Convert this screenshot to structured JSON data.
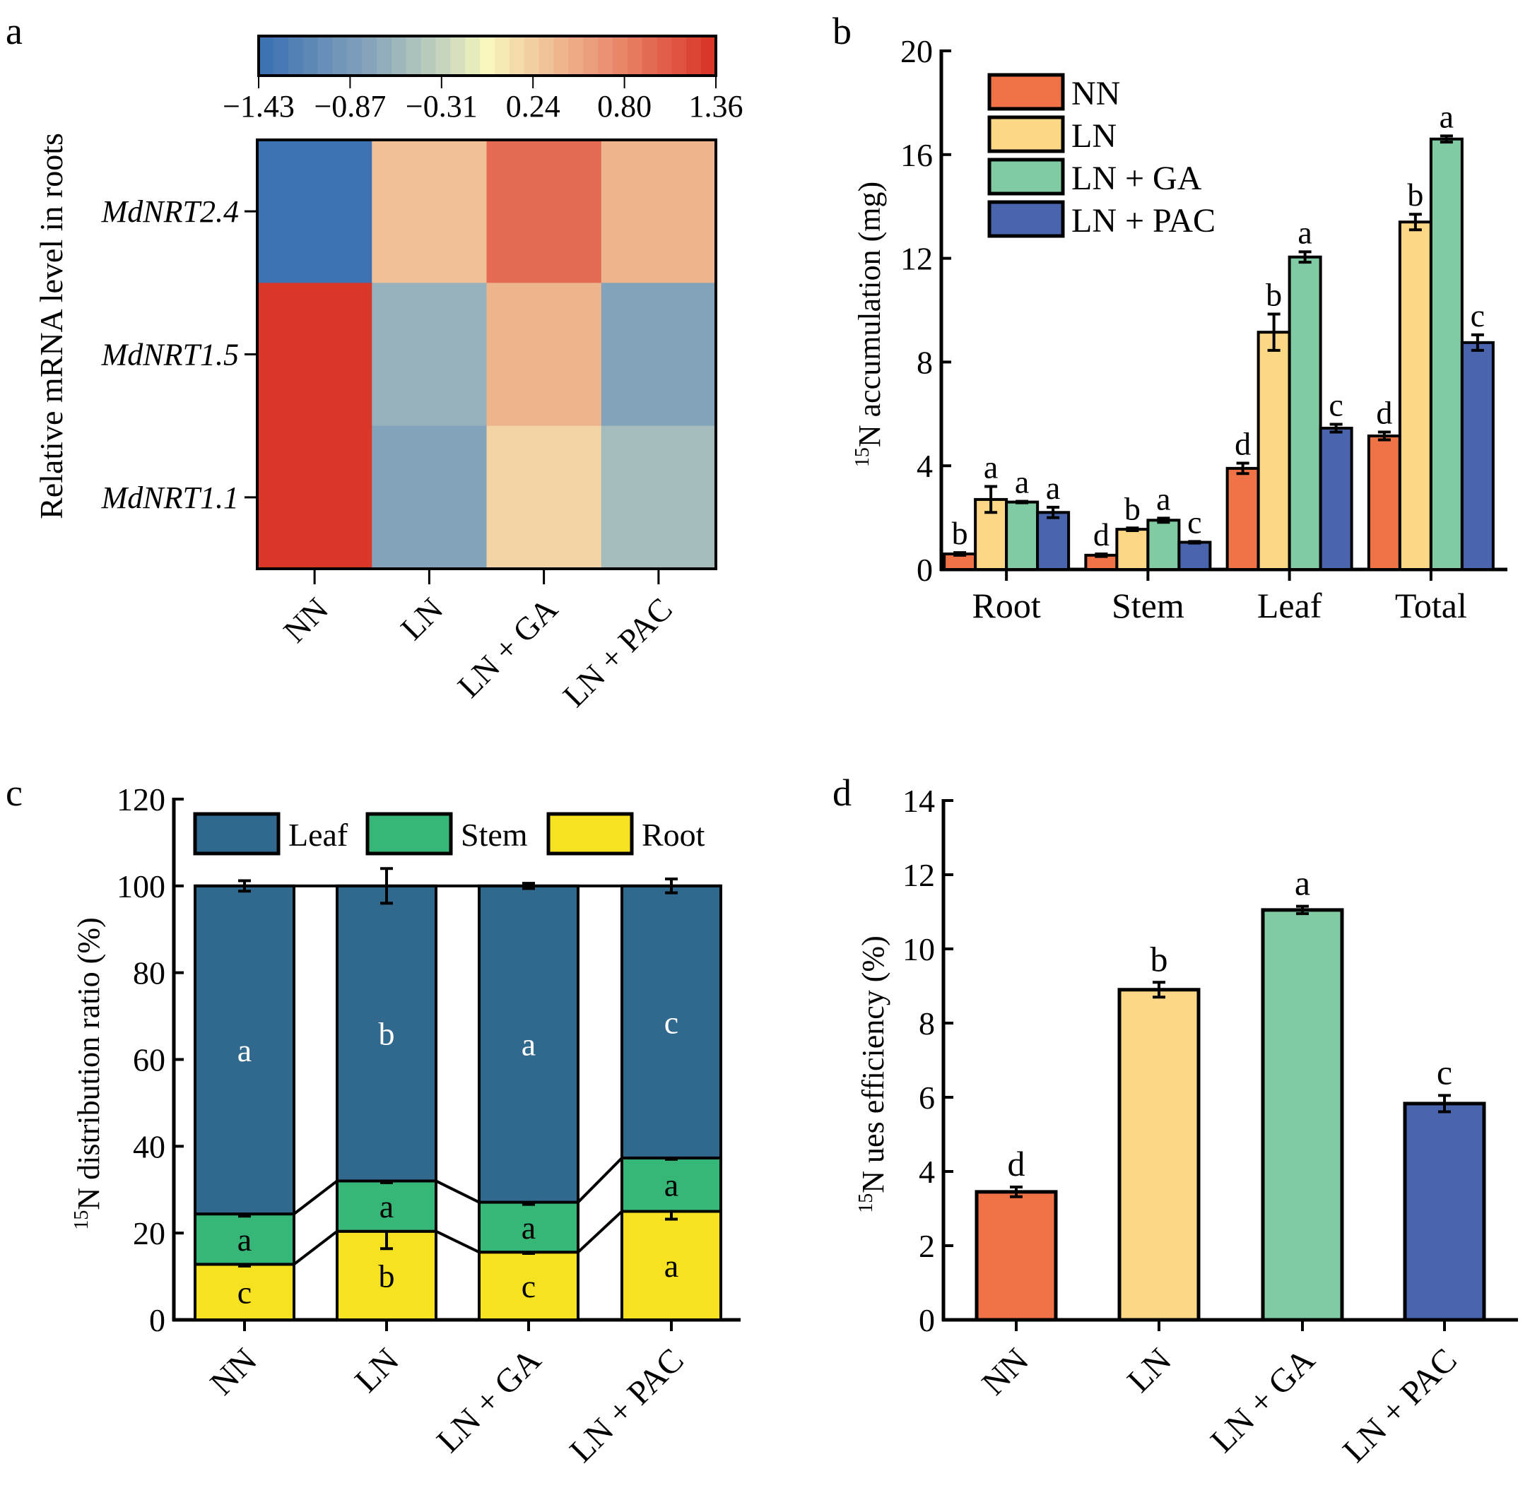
{
  "panels": {
    "a": {
      "letter": "a"
    },
    "b": {
      "letter": "b"
    },
    "c": {
      "letter": "c"
    },
    "d": {
      "letter": "d"
    }
  },
  "chart_data": [
    {
      "id": "a",
      "type": "heatmap",
      "title": "",
      "ylabel": "Relative mRNA level in roots",
      "xlabel": "",
      "x_categories": [
        "NN",
        "LN",
        "LN + GA",
        "LN + PAC"
      ],
      "y_categories": [
        "MdNRT2.4",
        "MdNRT1.5",
        "MdNRT1.1"
      ],
      "values": [
        [
          -1.43,
          0.35,
          1.0,
          0.45
        ],
        [
          1.36,
          -0.65,
          0.45,
          -0.8
        ],
        [
          1.36,
          -0.8,
          0.2,
          -0.55
        ]
      ],
      "colorbar": {
        "min": -1.43,
        "max": 1.36,
        "ticks": [
          "-1.43",
          "-0.87",
          "-0.31",
          "0.24",
          "0.80",
          "1.36"
        ],
        "tick_display": [
          "−1.43",
          "−0.87",
          "−0.31",
          "0.24",
          "0.80",
          "1.36"
        ],
        "low_color": "#3f72b3",
        "mid_color": "#f8f7bd",
        "high_color": "#d93829",
        "steps": 31,
        "placement": "top"
      }
    },
    {
      "id": "b",
      "type": "bar",
      "title": "",
      "xlabel": "",
      "ylabel_sup": "15",
      "ylabel": "N accumulation (mg)",
      "ylim": [
        0,
        20
      ],
      "yticks": [
        0,
        4,
        8,
        12,
        16,
        20
      ],
      "categories": [
        "Root",
        "Stem",
        "Leaf",
        "Total"
      ],
      "legend_placement": "top-left",
      "series": [
        {
          "name": "NN",
          "color": "#f07247",
          "values": [
            0.6,
            0.55,
            3.9,
            5.15
          ],
          "errors": [
            0.05,
            0.05,
            0.2,
            0.15
          ],
          "letters": [
            "b",
            "d",
            "d",
            "d"
          ]
        },
        {
          "name": "LN",
          "color": "#fcd886",
          "values": [
            2.7,
            1.55,
            9.15,
            13.4
          ],
          "errors": [
            0.5,
            0.05,
            0.7,
            0.3
          ],
          "letters": [
            "a",
            "b",
            "b",
            "b"
          ]
        },
        {
          "name": "LN + GA",
          "color": "#80cba4",
          "values": [
            2.6,
            1.9,
            12.05,
            16.6
          ],
          "errors": [
            0.03,
            0.08,
            0.2,
            0.12
          ],
          "letters": [
            "a",
            "a",
            "a",
            "a"
          ]
        },
        {
          "name": "LN + PAC",
          "color": "#4a64ad",
          "values": [
            2.2,
            1.05,
            5.45,
            8.75
          ],
          "errors": [
            0.2,
            0.03,
            0.15,
            0.3
          ],
          "letters": [
            "a",
            "c",
            "c",
            "c"
          ]
        }
      ]
    },
    {
      "id": "c",
      "type": "bar",
      "stacked": true,
      "title": "",
      "xlabel": "",
      "ylabel_sup": "15",
      "ylabel": "N distribution ratio (%)",
      "ylim": [
        0,
        120
      ],
      "yticks": [
        0,
        20,
        40,
        60,
        80,
        100,
        120
      ],
      "categories": [
        "NN",
        "LN",
        "LN + GA",
        "LN + PAC"
      ],
      "legend_placement": "top",
      "series": [
        {
          "name": "Root",
          "color": "#f6e220",
          "values": [
            12.8,
            20.4,
            15.6,
            25.0
          ],
          "errors": [
            0.4,
            4.0,
            0.3,
            1.8
          ],
          "letters": [
            "c",
            "b",
            "c",
            "a"
          ],
          "letter_color": "#000000"
        },
        {
          "name": "Stem",
          "color": "#37b777",
          "values": [
            11.6,
            11.6,
            11.5,
            12.3
          ],
          "errors": [
            0.5,
            0.4,
            0.5,
            0.3
          ],
          "letters": [
            "a",
            "a",
            "a",
            "a"
          ],
          "letter_color": "#000000"
        },
        {
          "name": "Leaf",
          "color": "#31688e",
          "values": [
            75.6,
            68.0,
            72.9,
            62.7
          ],
          "errors": [
            1.2,
            4.0,
            0.6,
            1.6
          ],
          "letters": [
            "a",
            "b",
            "a",
            "c"
          ],
          "letter_color": "#ffffff"
        }
      ],
      "legend_order": [
        "Leaf",
        "Stem",
        "Root"
      ]
    },
    {
      "id": "d",
      "type": "bar",
      "title": "",
      "xlabel": "",
      "ylabel_sup": "15",
      "ylabel": "N ues efficiency (%)",
      "ylim": [
        0,
        14
      ],
      "yticks": [
        0,
        2,
        4,
        6,
        8,
        10,
        12,
        14
      ],
      "categories": [
        "NN",
        "LN",
        "LN + GA",
        "LN + PAC"
      ],
      "series": [
        {
          "name": "15N ues efficiency",
          "values": [
            3.45,
            8.9,
            11.05,
            5.83
          ],
          "errors": [
            0.13,
            0.2,
            0.1,
            0.22
          ],
          "letters": [
            "d",
            "b",
            "a",
            "c"
          ],
          "colors": [
            "#f07247",
            "#fcd886",
            "#80cba4",
            "#4a64ad"
          ]
        }
      ]
    }
  ]
}
